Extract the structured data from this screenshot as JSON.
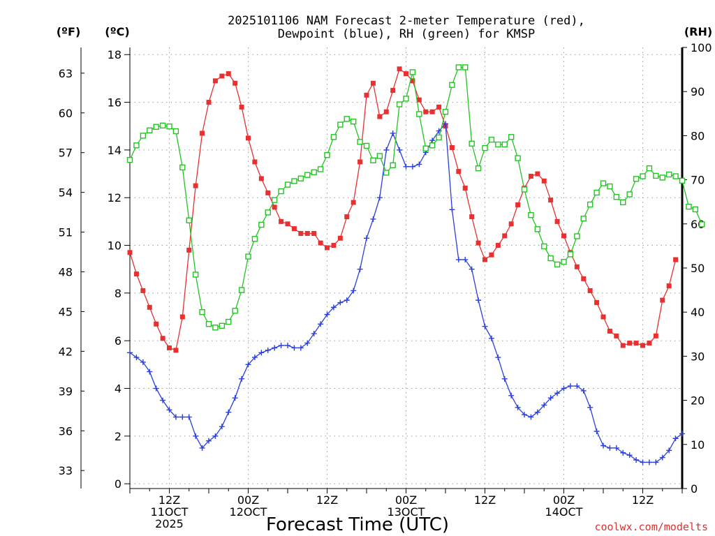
{
  "chart_data": {
    "type": "line",
    "title_lines": [
      "2025101106 NAM Forecast 2-meter Temperature (red),",
      "Dewpoint (blue), RH (green) for KMSP"
    ],
    "y_left_outer_unit": "(ºF)",
    "y_left_inner_unit": "(ºC)",
    "y_right_unit": "(RH)",
    "xlabel": "Forecast Time (UTC)",
    "credit": "coolwx.com/modelts",
    "x_range_hours": [
      0,
      84
    ],
    "ylim_celsius": [
      -0.2,
      18.3
    ],
    "y_celsius_ticks": [
      0,
      2,
      4,
      6,
      8,
      10,
      12,
      14,
      16,
      18
    ],
    "y_fahrenheit_ticks": [
      33,
      36,
      39,
      42,
      45,
      48,
      51,
      54,
      57,
      60,
      63
    ],
    "ylim_rh": [
      0,
      100
    ],
    "y_rh_ticks": [
      0,
      10,
      20,
      30,
      40,
      50,
      60,
      70,
      80,
      90,
      100
    ],
    "x_ticks": [
      {
        "hour": 6,
        "lines": [
          "12Z",
          "11OCT",
          "2025"
        ]
      },
      {
        "hour": 18,
        "lines": [
          "00Z",
          "12OCT"
        ]
      },
      {
        "hour": 30,
        "lines": [
          "12Z"
        ]
      },
      {
        "hour": 42,
        "lines": [
          "00Z",
          "13OCT"
        ]
      },
      {
        "hour": 54,
        "lines": [
          "12Z"
        ]
      },
      {
        "hour": 66,
        "lines": [
          "00Z",
          "14OCT"
        ]
      },
      {
        "hour": 78,
        "lines": [
          "12Z"
        ]
      }
    ],
    "series": [
      {
        "name": "Temperature",
        "unit": "C",
        "color": "#e83030",
        "marker": "filled-square",
        "points": [
          [
            0,
            9.7
          ],
          [
            1,
            8.8
          ],
          [
            2,
            8.1
          ],
          [
            3,
            7.4
          ],
          [
            4,
            6.7
          ],
          [
            5,
            6.1
          ],
          [
            6,
            5.7
          ],
          [
            7,
            5.6
          ],
          [
            8,
            7.0
          ],
          [
            9,
            9.8
          ],
          [
            10,
            12.5
          ],
          [
            11,
            14.7
          ],
          [
            12,
            16.0
          ],
          [
            13,
            16.9
          ],
          [
            14,
            17.1
          ],
          [
            15,
            17.2
          ],
          [
            16,
            16.8
          ],
          [
            17,
            15.8
          ],
          [
            18,
            14.5
          ],
          [
            19,
            13.5
          ],
          [
            20,
            12.8
          ],
          [
            21,
            12.2
          ],
          [
            22,
            11.6
          ],
          [
            23,
            11.0
          ],
          [
            24,
            10.9
          ],
          [
            25,
            10.7
          ],
          [
            26,
            10.5
          ],
          [
            27,
            10.5
          ],
          [
            28,
            10.5
          ],
          [
            29,
            10.1
          ],
          [
            30,
            9.9
          ],
          [
            31,
            10.0
          ],
          [
            32,
            10.3
          ],
          [
            33,
            11.2
          ],
          [
            34,
            11.8
          ],
          [
            35,
            13.5
          ],
          [
            36,
            16.3
          ],
          [
            37,
            16.8
          ],
          [
            38,
            15.4
          ],
          [
            39,
            15.6
          ],
          [
            40,
            16.5
          ],
          [
            41,
            17.4
          ],
          [
            42,
            17.2
          ],
          [
            43,
            16.9
          ],
          [
            44,
            16.1
          ],
          [
            45,
            15.6
          ],
          [
            46,
            15.6
          ],
          [
            47,
            15.8
          ],
          [
            48,
            15.0
          ],
          [
            49,
            14.1
          ],
          [
            50,
            13.1
          ],
          [
            51,
            12.4
          ],
          [
            52,
            11.2
          ],
          [
            53,
            10.1
          ],
          [
            54,
            9.4
          ],
          [
            55,
            9.6
          ],
          [
            56,
            10.0
          ],
          [
            57,
            10.4
          ],
          [
            58,
            10.9
          ],
          [
            59,
            11.7
          ],
          [
            60,
            12.4
          ],
          [
            61,
            12.9
          ],
          [
            62,
            13.0
          ],
          [
            63,
            12.7
          ],
          [
            64,
            11.9
          ],
          [
            65,
            11.0
          ],
          [
            66,
            10.4
          ],
          [
            67,
            9.7
          ],
          [
            68,
            9.1
          ],
          [
            69,
            8.6
          ],
          [
            70,
            8.1
          ],
          [
            71,
            7.6
          ],
          [
            72,
            7.0
          ],
          [
            73,
            6.4
          ],
          [
            74,
            6.2
          ],
          [
            75,
            5.8
          ],
          [
            76,
            5.9
          ],
          [
            77,
            5.9
          ],
          [
            78,
            5.8
          ],
          [
            79,
            5.9
          ],
          [
            80,
            6.2
          ],
          [
            81,
            7.7
          ],
          [
            82,
            8.3
          ],
          [
            83,
            9.4
          ]
        ]
      },
      {
        "name": "Dewpoint",
        "unit": "C",
        "color": "#2a3fdc",
        "marker": "plus",
        "points": [
          [
            0,
            5.5
          ],
          [
            1,
            5.3
          ],
          [
            2,
            5.1
          ],
          [
            3,
            4.7
          ],
          [
            4,
            4.0
          ],
          [
            5,
            3.5
          ],
          [
            6,
            3.1
          ],
          [
            7,
            2.8
          ],
          [
            8,
            2.8
          ],
          [
            9,
            2.8
          ],
          [
            10,
            2.0
          ],
          [
            11,
            1.5
          ],
          [
            12,
            1.8
          ],
          [
            13,
            2.0
          ],
          [
            14,
            2.4
          ],
          [
            15,
            3.0
          ],
          [
            16,
            3.6
          ],
          [
            17,
            4.4
          ],
          [
            18,
            5.0
          ],
          [
            19,
            5.3
          ],
          [
            20,
            5.5
          ],
          [
            21,
            5.6
          ],
          [
            22,
            5.7
          ],
          [
            23,
            5.8
          ],
          [
            24,
            5.8
          ],
          [
            25,
            5.7
          ],
          [
            26,
            5.7
          ],
          [
            27,
            5.9
          ],
          [
            28,
            6.3
          ],
          [
            29,
            6.7
          ],
          [
            30,
            7.1
          ],
          [
            31,
            7.4
          ],
          [
            32,
            7.6
          ],
          [
            33,
            7.7
          ],
          [
            34,
            8.1
          ],
          [
            35,
            9.0
          ],
          [
            36,
            10.3
          ],
          [
            37,
            11.1
          ],
          [
            38,
            12.0
          ],
          [
            39,
            14.0
          ],
          [
            40,
            14.7
          ],
          [
            41,
            14.0
          ],
          [
            42,
            13.3
          ],
          [
            43,
            13.3
          ],
          [
            44,
            13.4
          ],
          [
            45,
            13.9
          ],
          [
            46,
            14.4
          ],
          [
            47,
            14.8
          ],
          [
            48,
            15.1
          ],
          [
            49,
            11.5
          ],
          [
            50,
            9.4
          ],
          [
            51,
            9.4
          ],
          [
            52,
            9.0
          ],
          [
            53,
            7.7
          ],
          [
            54,
            6.6
          ],
          [
            55,
            6.1
          ],
          [
            56,
            5.3
          ],
          [
            57,
            4.4
          ],
          [
            58,
            3.7
          ],
          [
            59,
            3.2
          ],
          [
            60,
            2.9
          ],
          [
            61,
            2.8
          ],
          [
            62,
            3.0
          ],
          [
            63,
            3.3
          ],
          [
            64,
            3.6
          ],
          [
            65,
            3.8
          ],
          [
            66,
            4.0
          ],
          [
            67,
            4.1
          ],
          [
            68,
            4.1
          ],
          [
            69,
            3.9
          ],
          [
            70,
            3.2
          ],
          [
            71,
            2.2
          ],
          [
            72,
            1.6
          ],
          [
            73,
            1.5
          ],
          [
            74,
            1.5
          ],
          [
            75,
            1.3
          ],
          [
            76,
            1.2
          ],
          [
            77,
            1.0
          ],
          [
            78,
            0.9
          ],
          [
            79,
            0.9
          ],
          [
            80,
            0.9
          ],
          [
            81,
            1.1
          ],
          [
            82,
            1.4
          ],
          [
            83,
            1.9
          ],
          [
            84,
            2.1
          ]
        ]
      },
      {
        "name": "RH",
        "unit": "percent",
        "axis": "right",
        "color": "#22c422",
        "marker": "open-square",
        "points": [
          [
            0,
            74.5
          ],
          [
            1,
            77.8
          ],
          [
            2,
            80.0
          ],
          [
            3,
            81.2
          ],
          [
            4,
            82.0
          ],
          [
            5,
            82.3
          ],
          [
            6,
            82.1
          ],
          [
            7,
            81.0
          ],
          [
            8,
            72.8
          ],
          [
            9,
            60.8
          ],
          [
            10,
            48.5
          ],
          [
            11,
            40.0
          ],
          [
            12,
            37.3
          ],
          [
            13,
            36.5
          ],
          [
            14,
            36.9
          ],
          [
            15,
            37.8
          ],
          [
            16,
            40.3
          ],
          [
            17,
            45.0
          ],
          [
            18,
            52.6
          ],
          [
            19,
            56.6
          ],
          [
            20,
            59.8
          ],
          [
            21,
            62.6
          ],
          [
            22,
            65.4
          ],
          [
            23,
            67.4
          ],
          [
            24,
            68.9
          ],
          [
            25,
            69.7
          ],
          [
            26,
            70.3
          ],
          [
            27,
            71.1
          ],
          [
            28,
            71.7
          ],
          [
            29,
            72.4
          ],
          [
            30,
            75.6
          ],
          [
            31,
            79.7
          ],
          [
            32,
            82.5
          ],
          [
            33,
            83.8
          ],
          [
            34,
            83.2
          ],
          [
            35,
            78.6
          ],
          [
            36,
            77.7
          ],
          [
            37,
            74.4
          ],
          [
            38,
            75.4
          ],
          [
            39,
            71.6
          ],
          [
            40,
            73.3
          ],
          [
            41,
            87.1
          ],
          [
            42,
            88.4
          ],
          [
            43,
            94.4
          ],
          [
            44,
            84.9
          ],
          [
            45,
            77.1
          ],
          [
            46,
            77.8
          ],
          [
            47,
            79.6
          ],
          [
            48,
            85.4
          ],
          [
            49,
            91.5
          ],
          [
            50,
            95.5
          ],
          [
            51,
            95.5
          ],
          [
            52,
            78.2
          ],
          [
            53,
            72.6
          ],
          [
            54,
            77.2
          ],
          [
            55,
            79.1
          ],
          [
            56,
            78.0
          ],
          [
            57,
            78.0
          ],
          [
            58,
            79.7
          ],
          [
            59,
            74.9
          ],
          [
            60,
            67.8
          ],
          [
            61,
            62.0
          ],
          [
            62,
            58.8
          ],
          [
            63,
            54.9
          ],
          [
            64,
            52.2
          ],
          [
            65,
            50.8
          ],
          [
            66,
            51.4
          ],
          [
            67,
            53.1
          ],
          [
            68,
            57.2
          ],
          [
            69,
            61.2
          ],
          [
            70,
            64.4
          ],
          [
            71,
            67.1
          ],
          [
            72,
            69.2
          ],
          [
            73,
            68.5
          ],
          [
            74,
            66.1
          ],
          [
            75,
            64.9
          ],
          [
            76,
            66.7
          ],
          [
            77,
            70.2
          ],
          [
            78,
            70.8
          ],
          [
            79,
            72.6
          ],
          [
            80,
            70.9
          ],
          [
            81,
            70.5
          ],
          [
            82,
            71.2
          ],
          [
            83,
            70.8
          ],
          [
            84,
            69.8
          ],
          [
            85,
            63.9
          ],
          [
            86,
            63.3
          ],
          [
            87,
            59.9
          ]
        ]
      }
    ]
  }
}
